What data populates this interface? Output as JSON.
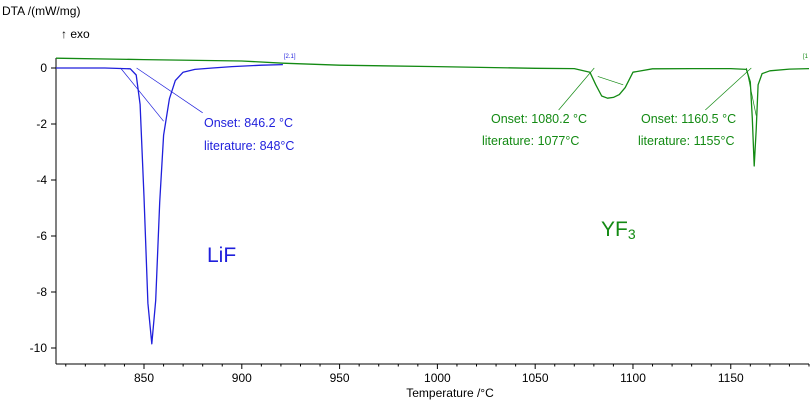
{
  "ylabel": "DTA /(mW/mg)",
  "exo_label": "↑ exo",
  "chart_data": {
    "type": "line",
    "title": "",
    "xlabel": "Temperature /°C",
    "ylabel": "DTA /(mW/mg)",
    "xlim": [
      805,
      1190
    ],
    "ylim": [
      -10.5,
      0.7
    ],
    "xticks": [
      850,
      900,
      950,
      1000,
      1050,
      1100,
      1150
    ],
    "yticks": [
      0,
      -2,
      -4,
      -6,
      -8,
      -10
    ],
    "grid": false,
    "series": [
      {
        "color": "#1f1fdc",
        "x": [
          805,
          830,
          843,
          846,
          848,
          850,
          852,
          854,
          856,
          858,
          860,
          863,
          866,
          870,
          876,
          885,
          895,
          910,
          921
        ],
        "y": [
          0.0,
          0.0,
          -0.03,
          -0.25,
          -1.3,
          -4.6,
          -8.4,
          -9.85,
          -8.3,
          -4.8,
          -2.4,
          -1.1,
          -0.45,
          -0.15,
          -0.05,
          0.0,
          0.05,
          0.1,
          0.12
        ]
      },
      {
        "color": "#138a13",
        "x": [
          805,
          850,
          900,
          921,
          950,
          1000,
          1050,
          1070,
          1078,
          1081,
          1084,
          1087,
          1090,
          1093,
          1096,
          1100,
          1110,
          1130,
          1150,
          1158,
          1160,
          1161,
          1162,
          1163,
          1164,
          1166,
          1170,
          1180,
          1190
        ],
        "y": [
          0.35,
          0.3,
          0.25,
          0.17,
          0.1,
          0.05,
          -0.01,
          -0.02,
          -0.15,
          -0.6,
          -1.0,
          -1.08,
          -1.05,
          -0.95,
          -0.7,
          -0.15,
          -0.03,
          -0.02,
          -0.02,
          -0.05,
          -0.5,
          -1.8,
          -3.5,
          -2.2,
          -0.6,
          -0.2,
          -0.1,
          -0.04,
          -0.02
        ]
      }
    ],
    "annotations": [
      {
        "text": "Onset: 846.2 °C",
        "color": "#1f1fdc"
      },
      {
        "text": "literature: 848°C",
        "color": "#1f1fdc"
      },
      {
        "text": "Onset: 1080.2 °C",
        "color": "#138a13"
      },
      {
        "text": "literature: 1077°C",
        "color": "#138a13"
      },
      {
        "text": "Onset: 1160.5 °C",
        "color": "#138a13"
      },
      {
        "text": "literature: 1155°C",
        "color": "#138a13"
      }
    ],
    "compound_labels": [
      {
        "text": "LiF",
        "color": "#1f1fdc"
      },
      {
        "base": "YF",
        "sub": "3",
        "color": "#138a13"
      }
    ],
    "segment_markers": [
      "[2.1]",
      "[1"
    ]
  }
}
